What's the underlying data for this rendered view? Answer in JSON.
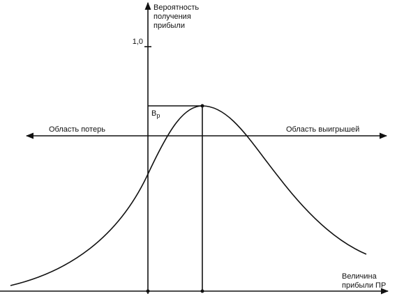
{
  "y_axis": {
    "label_lines": [
      "Вероятность",
      "получения",
      "прибыли"
    ],
    "tick": "1,0"
  },
  "peak_label": {
    "main": "В",
    "sub": "р"
  },
  "regions": {
    "loss": "Область потерь",
    "gain": "Область выигрышей"
  },
  "x_axis": {
    "label_lines": [
      "Величина",
      "прибыли ПР"
    ]
  }
}
